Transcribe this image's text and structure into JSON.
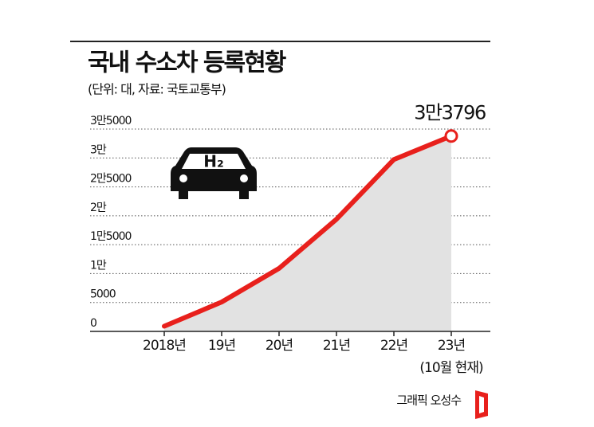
{
  "chart_data": {
    "type": "line",
    "title": "국내 수소차 등록현황",
    "subtitle": "(단위: 대, 자료: 국토교통부)",
    "categories": [
      "2018년",
      "19년",
      "20년",
      "21년",
      "22년",
      "23년"
    ],
    "x_note": "(10월 현재)",
    "values": [
      893,
      5083,
      10906,
      19404,
      29733,
      33796
    ],
    "value_labels": [
      null,
      null,
      null,
      null,
      null,
      "3만3796"
    ],
    "color": "#e8201c",
    "area_color": "#e2e2e2",
    "ylim": [
      0,
      35000
    ],
    "yticks": [
      0,
      5000,
      {
        "value": 10000,
        "label": "1만"
      },
      {
        "value": 15000,
        "label": "1만5000"
      },
      {
        "value": 20000,
        "label": "2만"
      },
      {
        "value": 25000,
        "label": "2만5000"
      },
      {
        "value": 30000,
        "label": "3만"
      },
      {
        "value": 35000,
        "label": "3만5000"
      }
    ],
    "grid": true,
    "icon_label": "H₂",
    "credit": "그래픽 오성수"
  }
}
